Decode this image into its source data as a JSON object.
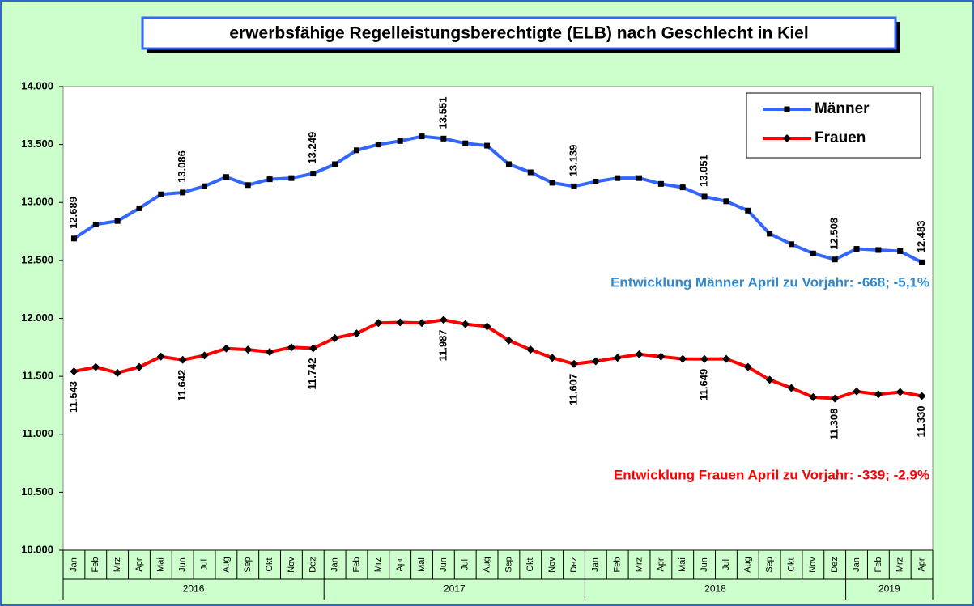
{
  "chart_data": {
    "type": "line",
    "title": "erwerbsfähige Regelleistungsberechtigte (ELB) nach Geschlecht in Kiel",
    "categories": [
      "Jan",
      "Feb",
      "Mrz",
      "Apr",
      "Mai",
      "Jun",
      "Jul",
      "Aug",
      "Sep",
      "Okt",
      "Nov",
      "Dez",
      "Jan",
      "Feb",
      "Mrz",
      "Apr",
      "Mai",
      "Jun",
      "Jul",
      "Aug",
      "Sep",
      "Okt",
      "Nov",
      "Dez",
      "Jan",
      "Feb",
      "Mrz",
      "Apr",
      "Mai",
      "Jun",
      "Jul",
      "Aug",
      "Sep",
      "Okt",
      "Nov",
      "Dez",
      "Jan",
      "Feb",
      "Mrz",
      "Apr"
    ],
    "category_groups": [
      "2016",
      "2017",
      "2018",
      "2019"
    ],
    "series": [
      {
        "name": "Männer",
        "color": "#3366ff",
        "marker": "square",
        "values": [
          12689,
          12810,
          12840,
          12950,
          13070,
          13086,
          13140,
          13220,
          13150,
          13200,
          13210,
          13249,
          13330,
          13450,
          13500,
          13530,
          13570,
          13551,
          13510,
          13490,
          13330,
          13260,
          13170,
          13139,
          13180,
          13210,
          13210,
          13160,
          13130,
          13051,
          13010,
          12930,
          12730,
          12640,
          12560,
          12508,
          12600,
          12590,
          12580,
          12483
        ],
        "value_labels": [
          "12.689",
          null,
          null,
          null,
          null,
          "13.086",
          null,
          null,
          null,
          null,
          null,
          "13.249",
          null,
          null,
          null,
          null,
          null,
          "13.551",
          null,
          null,
          null,
          null,
          null,
          "13.139",
          null,
          null,
          null,
          null,
          null,
          "13.051",
          null,
          null,
          null,
          null,
          null,
          "12.508",
          null,
          null,
          null,
          "12.483"
        ]
      },
      {
        "name": "Frauen",
        "color": "#ff0000",
        "marker": "diamond",
        "values": [
          11543,
          11580,
          11530,
          11580,
          11670,
          11642,
          11680,
          11740,
          11730,
          11710,
          11750,
          11742,
          11830,
          11870,
          11960,
          11965,
          11960,
          11987,
          11950,
          11930,
          11810,
          11730,
          11660,
          11607,
          11630,
          11660,
          11690,
          11670,
          11650,
          11649,
          11650,
          11580,
          11470,
          11400,
          11320,
          11308,
          11370,
          11345,
          11365,
          11330
        ],
        "value_labels": [
          "11.543",
          null,
          null,
          null,
          null,
          "11.642",
          null,
          null,
          null,
          null,
          null,
          "11.742",
          null,
          null,
          null,
          null,
          null,
          "11.987",
          null,
          null,
          null,
          null,
          null,
          "11.607",
          null,
          null,
          null,
          null,
          null,
          "11.649",
          null,
          null,
          null,
          null,
          null,
          "11.308",
          null,
          null,
          null,
          "11.330"
        ]
      }
    ],
    "annotations": [
      "Entwicklung Männer April zu Vorjahr: -668; -5,1%",
      "Entwicklung Frauen April zu Vorjahr: -339; -2,9%"
    ],
    "ylim": [
      10000,
      14000
    ],
    "yticks": [
      {
        "value": 10000,
        "label": "10.000"
      },
      {
        "value": 10500,
        "label": "10.500"
      },
      {
        "value": 11000,
        "label": "11.000"
      },
      {
        "value": 11500,
        "label": "11.500"
      },
      {
        "value": 12000,
        "label": "12.000"
      },
      {
        "value": 12500,
        "label": "12.500"
      },
      {
        "value": 13000,
        "label": "13.000"
      },
      {
        "value": 13500,
        "label": "13.500"
      },
      {
        "value": 14000,
        "label": "14.000"
      }
    ],
    "grid": false,
    "legend": "upper right"
  }
}
